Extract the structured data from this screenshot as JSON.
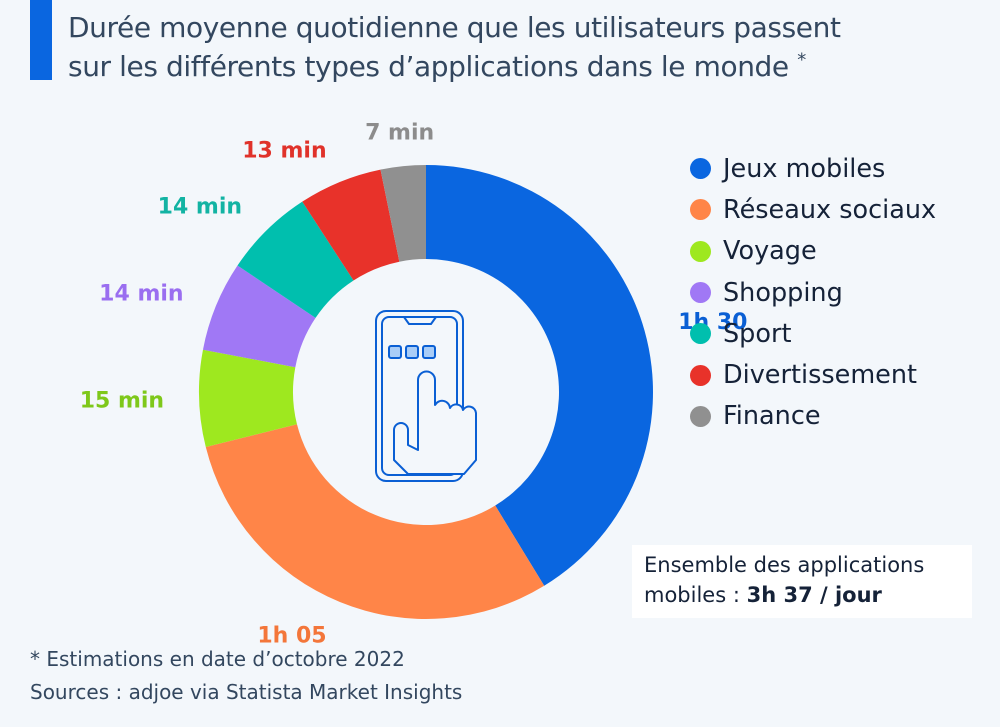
{
  "header": {
    "title_line1": "Durée moyenne quotidienne que les utilisateurs passent",
    "title_line2": "sur les différents types d’applications dans le monde",
    "title_mark": "*",
    "accent_color": "#0a66e0"
  },
  "chart_data": {
    "type": "pie",
    "variant": "donut",
    "title": "Durée moyenne quotidienne que les utilisateurs passent sur les différents types d’applications dans le monde *",
    "unit": "minutes",
    "start": "12 o'clock",
    "direction": "clockwise",
    "categories": [
      "Jeux mobiles",
      "Réseaux sociaux",
      "Voyage",
      "Shopping",
      "Sport",
      "Divertissement",
      "Finance"
    ],
    "values": [
      90,
      65,
      15,
      14,
      14,
      13,
      7
    ],
    "data_labels": [
      "1h 30",
      "1h 05",
      "15 min",
      "14 min",
      "14 min",
      "13 min",
      "7 min"
    ],
    "colors": [
      "#0a66e0",
      "#ff8548",
      "#9ee81f",
      "#a078f5",
      "#00bfae",
      "#e8322a",
      "#909090"
    ],
    "label_colors": [
      "#0a5fd4",
      "#f3763a",
      "#7ec81a",
      "#9a6ef0",
      "#12b3a3",
      "#e0322a",
      "#8c8c8c"
    ],
    "legend": [
      "Jeux mobiles",
      "Réseaux sociaux",
      "Voyage",
      "Shopping",
      "Sport",
      "Divertissement",
      "Finance"
    ],
    "legend_position": "right",
    "center_icon": "smartphone-tap-icon",
    "total_label": "Ensemble des applications mobiles : 3h 37 / jour"
  },
  "total_box": {
    "line1": "Ensemble des applications",
    "line2_prefix": "mobiles : ",
    "line2_value": "3h 37 / jour"
  },
  "footer": {
    "note": "* Estimations en date d’octobre 2022",
    "source": "Sources : adjoe via Statista Market Insights"
  }
}
